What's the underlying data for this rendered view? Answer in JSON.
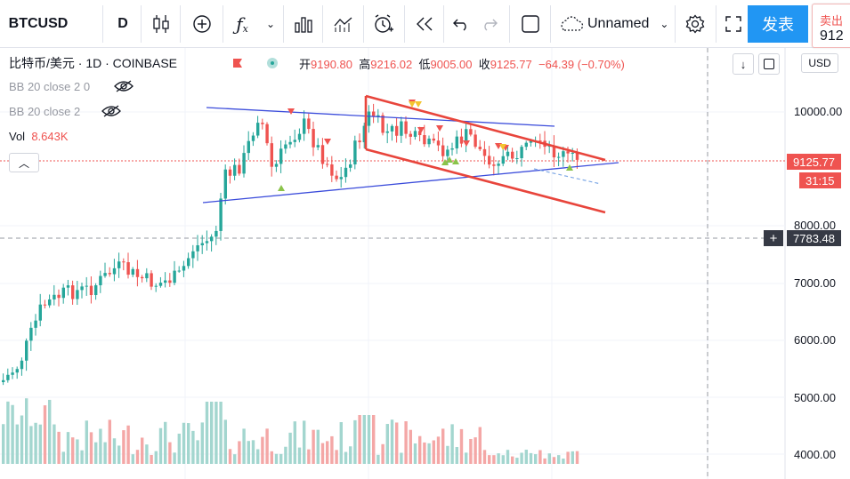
{
  "toolbar": {
    "symbol": "BTCUSD",
    "interval": "D",
    "layout_name": "Unnamed",
    "publish_label": "发表",
    "sell_label": "卖出",
    "sell_price": "912"
  },
  "legend": {
    "title": "比特币/美元 · 1D · COINBASE",
    "open_label": "开",
    "open_value": "9190.80",
    "high_label": "高",
    "high_value": "9216.02",
    "low_label": "低",
    "low_value": "9005.00",
    "close_label": "收",
    "close_value": "9125.77",
    "change": "−64.39 (−0.70%)",
    "indicators": [
      {
        "label": "BB 20 close 2 0"
      },
      {
        "label": "BB 20 close 2"
      }
    ],
    "vol_label": "Vol",
    "vol_value": "8.643K"
  },
  "price_axis": {
    "currency": "USD",
    "ticks": [
      "10000.00",
      "8000.00",
      "7000.00",
      "6000.00",
      "5000.00",
      "4000.00"
    ],
    "last_price": "9125.77",
    "countdown": "31:15",
    "crosshair_price": "7783.48"
  },
  "colors": {
    "up": "#26a69a",
    "down": "#ef5350",
    "channel": "#e8453c",
    "triangle": "#3b4cdb",
    "accent": "#2196f3"
  }
}
